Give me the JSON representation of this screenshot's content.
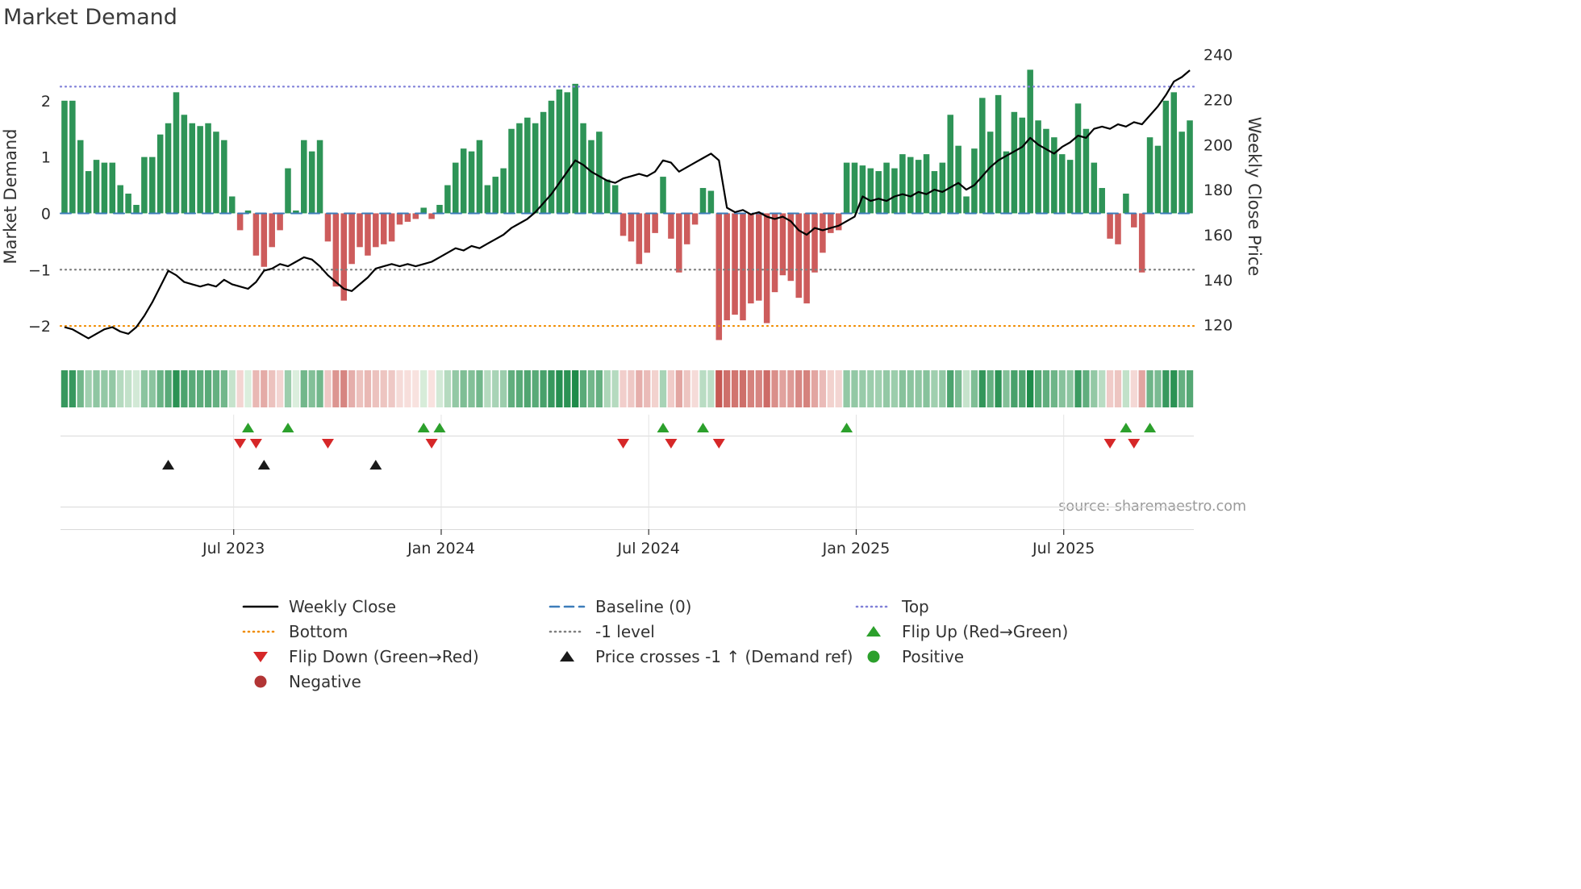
{
  "title": "Market Demand",
  "source": "source: sharemaestro.com",
  "chart_data": {
    "type": "bar+line",
    "title": "Market Demand",
    "left_axis": {
      "label": "Market Demand",
      "ticks": [
        -2,
        -1,
        0,
        1,
        2
      ],
      "range": [
        -2.3,
        2.9
      ]
    },
    "right_axis": {
      "label": "Weekly Close Price",
      "ticks": [
        120,
        140,
        160,
        180,
        200,
        220,
        240
      ],
      "range": [
        112,
        242
      ]
    },
    "x_ticks": {
      "labels": [
        "Jul 2023",
        "Jan 2024",
        "Jul 2024",
        "Jan 2025",
        "Jul 2025"
      ],
      "index": [
        21.2,
        47.2,
        73.2,
        99.2,
        125.2
      ]
    },
    "levels": {
      "top": 2.25,
      "baseline": 0,
      "minus1": -1,
      "bottom": -2
    },
    "colors": {
      "bar_positive": "#2e9457",
      "bar_negative": "#cd5c5c",
      "price_line": "#000000",
      "top_line": "#8080d8",
      "bottom_line": "#f08c00",
      "minus1_line": "#7f7f7f",
      "baseline_line": "#3d7dba",
      "flip_up": "#2ca02c",
      "flip_down": "#d62728",
      "price_cross": "#1a1a1a",
      "positive_dot": "#2ca02c",
      "negative_dot": "#b23535",
      "heat_green_dark": "#1e8b4a",
      "heat_green_light": "#dff0e0",
      "heat_red_dark": "#c55550",
      "heat_red_light": "#fae8e5"
    },
    "demand": [
      2.0,
      2.0,
      1.3,
      0.75,
      0.95,
      0.9,
      0.9,
      0.5,
      0.35,
      0.15,
      1.0,
      1.0,
      1.4,
      1.6,
      2.15,
      1.75,
      1.6,
      1.55,
      1.6,
      1.45,
      1.3,
      0.3,
      -0.3,
      0.05,
      -0.75,
      -0.95,
      -0.6,
      -0.3,
      0.8,
      0.05,
      1.3,
      1.1,
      1.3,
      -0.5,
      -1.3,
      -1.55,
      -0.9,
      -0.6,
      -0.75,
      -0.6,
      -0.55,
      -0.5,
      -0.2,
      -0.15,
      -0.1,
      0.1,
      -0.1,
      0.15,
      0.5,
      0.9,
      1.15,
      1.1,
      1.3,
      0.5,
      0.65,
      0.8,
      1.5,
      1.6,
      1.7,
      1.6,
      1.8,
      2.0,
      2.2,
      2.15,
      2.3,
      1.6,
      1.3,
      1.45,
      0.6,
      0.5,
      -0.4,
      -0.5,
      -0.9,
      -0.7,
      -0.35,
      0.65,
      -0.45,
      -1.05,
      -0.55,
      -0.2,
      0.45,
      0.4,
      -2.25,
      -1.9,
      -1.8,
      -1.9,
      -1.6,
      -1.55,
      -1.95,
      -1.4,
      -1.1,
      -1.2,
      -1.5,
      -1.6,
      -1.05,
      -0.7,
      -0.35,
      -0.3,
      0.9,
      0.9,
      0.85,
      0.8,
      0.75,
      0.9,
      0.8,
      1.05,
      1.0,
      0.95,
      1.05,
      0.75,
      0.9,
      1.75,
      1.2,
      0.3,
      1.15,
      2.05,
      1.45,
      2.1,
      1.1,
      1.8,
      1.7,
      2.55,
      1.65,
      1.5,
      1.35,
      1.05,
      0.95,
      1.95,
      1.5,
      0.9,
      0.45,
      -0.45,
      -0.55,
      0.35,
      -0.25,
      -1.05,
      1.35,
      1.2,
      2.0,
      2.15,
      1.45,
      1.65
    ],
    "price": [
      119,
      118,
      116,
      114,
      116,
      118,
      119,
      117,
      116,
      119,
      124,
      130,
      137,
      144,
      142,
      139,
      138,
      137,
      138,
      137,
      140,
      138,
      137,
      136,
      139,
      144,
      145,
      147,
      146,
      148,
      150,
      149,
      146,
      142,
      139,
      136,
      135,
      138,
      141,
      145,
      146,
      147,
      146,
      147,
      146,
      147,
      148,
      150,
      152,
      154,
      153,
      155,
      154,
      156,
      158,
      160,
      163,
      165,
      167,
      170,
      174,
      178,
      183,
      188,
      193,
      191,
      188,
      186,
      184,
      183,
      185,
      186,
      187,
      186,
      188,
      193,
      192,
      188,
      190,
      192,
      194,
      196,
      193,
      172,
      170,
      171,
      169,
      170,
      168,
      167,
      168,
      166,
      162,
      160,
      163,
      162,
      163,
      164,
      166,
      168,
      177,
      175,
      176,
      175,
      177,
      178,
      177,
      179,
      178,
      180,
      179,
      181,
      183,
      180,
      182,
      186,
      190,
      193,
      195,
      197,
      199,
      203,
      200,
      198,
      196,
      199,
      201,
      204,
      203,
      207,
      208,
      207,
      209,
      208,
      210,
      209,
      213,
      217,
      222,
      228,
      230,
      233
    ],
    "flip_up_idx": [
      23,
      28,
      45,
      47,
      75,
      80,
      98,
      133,
      136
    ],
    "flip_down_idx": [
      22,
      24,
      33,
      46,
      70,
      76,
      82,
      131,
      134
    ],
    "price_cross_idx": [
      13,
      25,
      39
    ]
  },
  "legend": {
    "items": [
      {
        "label": "Weekly Close",
        "swatch": "line-solid",
        "color": "#000000"
      },
      {
        "label": "Baseline (0)",
        "swatch": "line-dashed",
        "color": "#3d7dba"
      },
      {
        "label": "Top",
        "swatch": "line-dotted",
        "color": "#8080d8"
      },
      {
        "label": "Bottom",
        "swatch": "line-dotted",
        "color": "#f08c00"
      },
      {
        "label": "-1 level",
        "swatch": "line-dotted",
        "color": "#7f7f7f"
      },
      {
        "label": "Flip Up (Red→Green)",
        "swatch": "triangle-up",
        "color": "#2ca02c"
      },
      {
        "label": "Flip Down (Green→Red)",
        "swatch": "triangle-down",
        "color": "#d62728"
      },
      {
        "label": "Price crosses -1 ↑ (Demand ref)",
        "swatch": "triangle-up",
        "color": "#1a1a1a"
      },
      {
        "label": "Positive",
        "swatch": "dot",
        "color": "#2ca02c"
      },
      {
        "label": "Negative",
        "swatch": "dot",
        "color": "#b23535"
      }
    ]
  }
}
